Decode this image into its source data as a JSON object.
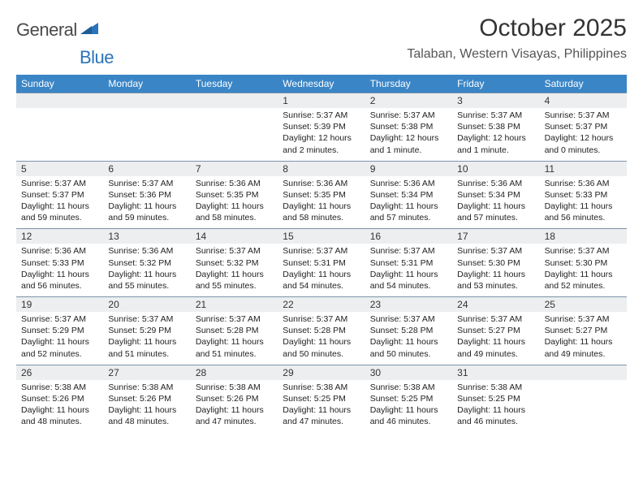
{
  "brand": {
    "part1": "General",
    "part2": "Blue"
  },
  "title": "October 2025",
  "location": "Talaban, Western Visayas, Philippines",
  "colors": {
    "header_bg": "#3a85c6",
    "header_text": "#ffffff",
    "daynum_bg": "#eceeef",
    "border": "#7d94a8",
    "brand_gray": "#4a4a4a",
    "brand_blue": "#2b74b8"
  },
  "days_of_week": [
    "Sunday",
    "Monday",
    "Tuesday",
    "Wednesday",
    "Thursday",
    "Friday",
    "Saturday"
  ],
  "weeks": [
    [
      {
        "n": "",
        "sr": "",
        "ss": "",
        "dl": ""
      },
      {
        "n": "",
        "sr": "",
        "ss": "",
        "dl": ""
      },
      {
        "n": "",
        "sr": "",
        "ss": "",
        "dl": ""
      },
      {
        "n": "1",
        "sr": "Sunrise: 5:37 AM",
        "ss": "Sunset: 5:39 PM",
        "dl": "Daylight: 12 hours and 2 minutes."
      },
      {
        "n": "2",
        "sr": "Sunrise: 5:37 AM",
        "ss": "Sunset: 5:38 PM",
        "dl": "Daylight: 12 hours and 1 minute."
      },
      {
        "n": "3",
        "sr": "Sunrise: 5:37 AM",
        "ss": "Sunset: 5:38 PM",
        "dl": "Daylight: 12 hours and 1 minute."
      },
      {
        "n": "4",
        "sr": "Sunrise: 5:37 AM",
        "ss": "Sunset: 5:37 PM",
        "dl": "Daylight: 12 hours and 0 minutes."
      }
    ],
    [
      {
        "n": "5",
        "sr": "Sunrise: 5:37 AM",
        "ss": "Sunset: 5:37 PM",
        "dl": "Daylight: 11 hours and 59 minutes."
      },
      {
        "n": "6",
        "sr": "Sunrise: 5:37 AM",
        "ss": "Sunset: 5:36 PM",
        "dl": "Daylight: 11 hours and 59 minutes."
      },
      {
        "n": "7",
        "sr": "Sunrise: 5:36 AM",
        "ss": "Sunset: 5:35 PM",
        "dl": "Daylight: 11 hours and 58 minutes."
      },
      {
        "n": "8",
        "sr": "Sunrise: 5:36 AM",
        "ss": "Sunset: 5:35 PM",
        "dl": "Daylight: 11 hours and 58 minutes."
      },
      {
        "n": "9",
        "sr": "Sunrise: 5:36 AM",
        "ss": "Sunset: 5:34 PM",
        "dl": "Daylight: 11 hours and 57 minutes."
      },
      {
        "n": "10",
        "sr": "Sunrise: 5:36 AM",
        "ss": "Sunset: 5:34 PM",
        "dl": "Daylight: 11 hours and 57 minutes."
      },
      {
        "n": "11",
        "sr": "Sunrise: 5:36 AM",
        "ss": "Sunset: 5:33 PM",
        "dl": "Daylight: 11 hours and 56 minutes."
      }
    ],
    [
      {
        "n": "12",
        "sr": "Sunrise: 5:36 AM",
        "ss": "Sunset: 5:33 PM",
        "dl": "Daylight: 11 hours and 56 minutes."
      },
      {
        "n": "13",
        "sr": "Sunrise: 5:36 AM",
        "ss": "Sunset: 5:32 PM",
        "dl": "Daylight: 11 hours and 55 minutes."
      },
      {
        "n": "14",
        "sr": "Sunrise: 5:37 AM",
        "ss": "Sunset: 5:32 PM",
        "dl": "Daylight: 11 hours and 55 minutes."
      },
      {
        "n": "15",
        "sr": "Sunrise: 5:37 AM",
        "ss": "Sunset: 5:31 PM",
        "dl": "Daylight: 11 hours and 54 minutes."
      },
      {
        "n": "16",
        "sr": "Sunrise: 5:37 AM",
        "ss": "Sunset: 5:31 PM",
        "dl": "Daylight: 11 hours and 54 minutes."
      },
      {
        "n": "17",
        "sr": "Sunrise: 5:37 AM",
        "ss": "Sunset: 5:30 PM",
        "dl": "Daylight: 11 hours and 53 minutes."
      },
      {
        "n": "18",
        "sr": "Sunrise: 5:37 AM",
        "ss": "Sunset: 5:30 PM",
        "dl": "Daylight: 11 hours and 52 minutes."
      }
    ],
    [
      {
        "n": "19",
        "sr": "Sunrise: 5:37 AM",
        "ss": "Sunset: 5:29 PM",
        "dl": "Daylight: 11 hours and 52 minutes."
      },
      {
        "n": "20",
        "sr": "Sunrise: 5:37 AM",
        "ss": "Sunset: 5:29 PM",
        "dl": "Daylight: 11 hours and 51 minutes."
      },
      {
        "n": "21",
        "sr": "Sunrise: 5:37 AM",
        "ss": "Sunset: 5:28 PM",
        "dl": "Daylight: 11 hours and 51 minutes."
      },
      {
        "n": "22",
        "sr": "Sunrise: 5:37 AM",
        "ss": "Sunset: 5:28 PM",
        "dl": "Daylight: 11 hours and 50 minutes."
      },
      {
        "n": "23",
        "sr": "Sunrise: 5:37 AM",
        "ss": "Sunset: 5:28 PM",
        "dl": "Daylight: 11 hours and 50 minutes."
      },
      {
        "n": "24",
        "sr": "Sunrise: 5:37 AM",
        "ss": "Sunset: 5:27 PM",
        "dl": "Daylight: 11 hours and 49 minutes."
      },
      {
        "n": "25",
        "sr": "Sunrise: 5:37 AM",
        "ss": "Sunset: 5:27 PM",
        "dl": "Daylight: 11 hours and 49 minutes."
      }
    ],
    [
      {
        "n": "26",
        "sr": "Sunrise: 5:38 AM",
        "ss": "Sunset: 5:26 PM",
        "dl": "Daylight: 11 hours and 48 minutes."
      },
      {
        "n": "27",
        "sr": "Sunrise: 5:38 AM",
        "ss": "Sunset: 5:26 PM",
        "dl": "Daylight: 11 hours and 48 minutes."
      },
      {
        "n": "28",
        "sr": "Sunrise: 5:38 AM",
        "ss": "Sunset: 5:26 PM",
        "dl": "Daylight: 11 hours and 47 minutes."
      },
      {
        "n": "29",
        "sr": "Sunrise: 5:38 AM",
        "ss": "Sunset: 5:25 PM",
        "dl": "Daylight: 11 hours and 47 minutes."
      },
      {
        "n": "30",
        "sr": "Sunrise: 5:38 AM",
        "ss": "Sunset: 5:25 PM",
        "dl": "Daylight: 11 hours and 46 minutes."
      },
      {
        "n": "31",
        "sr": "Sunrise: 5:38 AM",
        "ss": "Sunset: 5:25 PM",
        "dl": "Daylight: 11 hours and 46 minutes."
      },
      {
        "n": "",
        "sr": "",
        "ss": "",
        "dl": ""
      }
    ]
  ]
}
